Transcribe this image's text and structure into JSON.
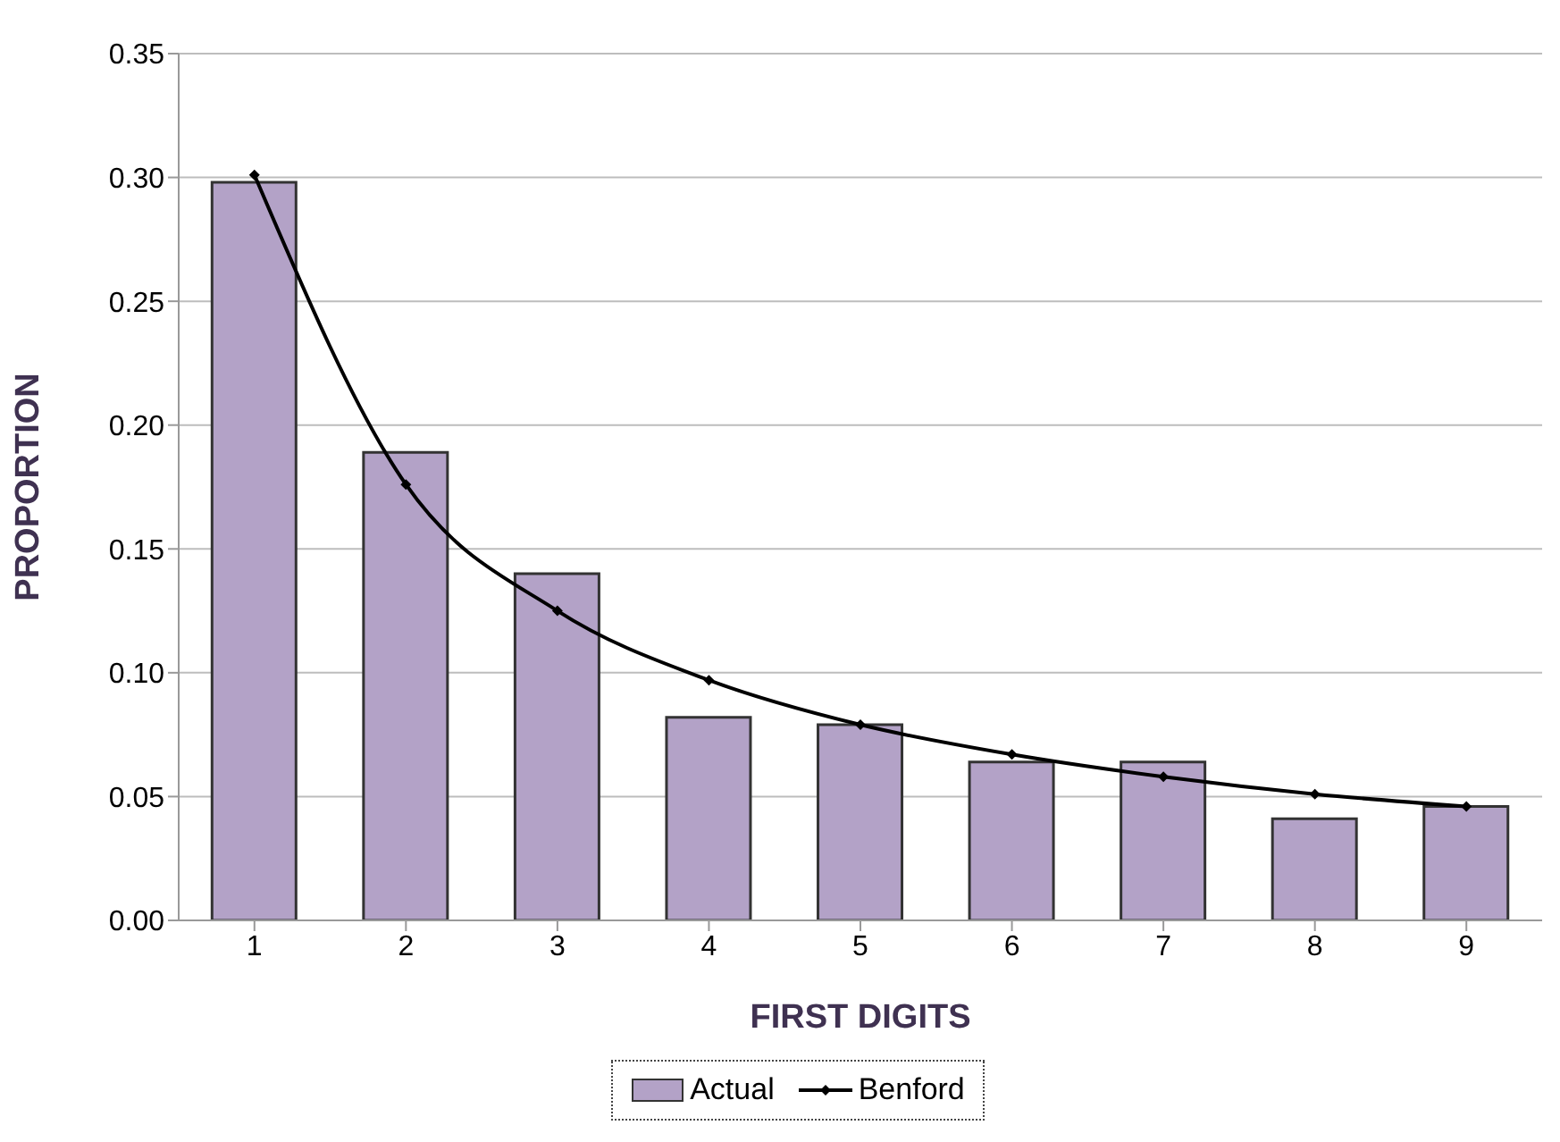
{
  "chart_data": {
    "type": "bar",
    "xlabel": "FIRST DIGITS",
    "ylabel": "PROPORTION",
    "categories": [
      "1",
      "2",
      "3",
      "4",
      "5",
      "6",
      "7",
      "8",
      "9"
    ],
    "series": [
      {
        "name": "Actual",
        "color": "#b3a2c7",
        "values": [
          0.298,
          0.189,
          0.14,
          0.082,
          0.079,
          0.064,
          0.064,
          0.041,
          0.046
        ]
      },
      {
        "name": "Benford",
        "type": "line",
        "color": "#000000",
        "values": [
          0.301,
          0.176,
          0.125,
          0.097,
          0.079,
          0.067,
          0.058,
          0.051,
          0.046
        ]
      }
    ],
    "ylim": [
      0,
      0.35
    ],
    "yticks": [
      {
        "value": 0,
        "label": "0.00"
      },
      {
        "value": 0.05,
        "label": "0.05"
      },
      {
        "value": 0.1,
        "label": "0.10"
      },
      {
        "value": 0.15,
        "label": "0.15"
      },
      {
        "value": 0.2,
        "label": "0.20"
      },
      {
        "value": 0.25,
        "label": "0.25"
      },
      {
        "value": 0.3,
        "label": "0.30"
      },
      {
        "value": 0.35,
        "label": "0.35"
      }
    ],
    "grid": "y",
    "legend": "bottom",
    "marker": "diamond",
    "line_style": "solid"
  }
}
